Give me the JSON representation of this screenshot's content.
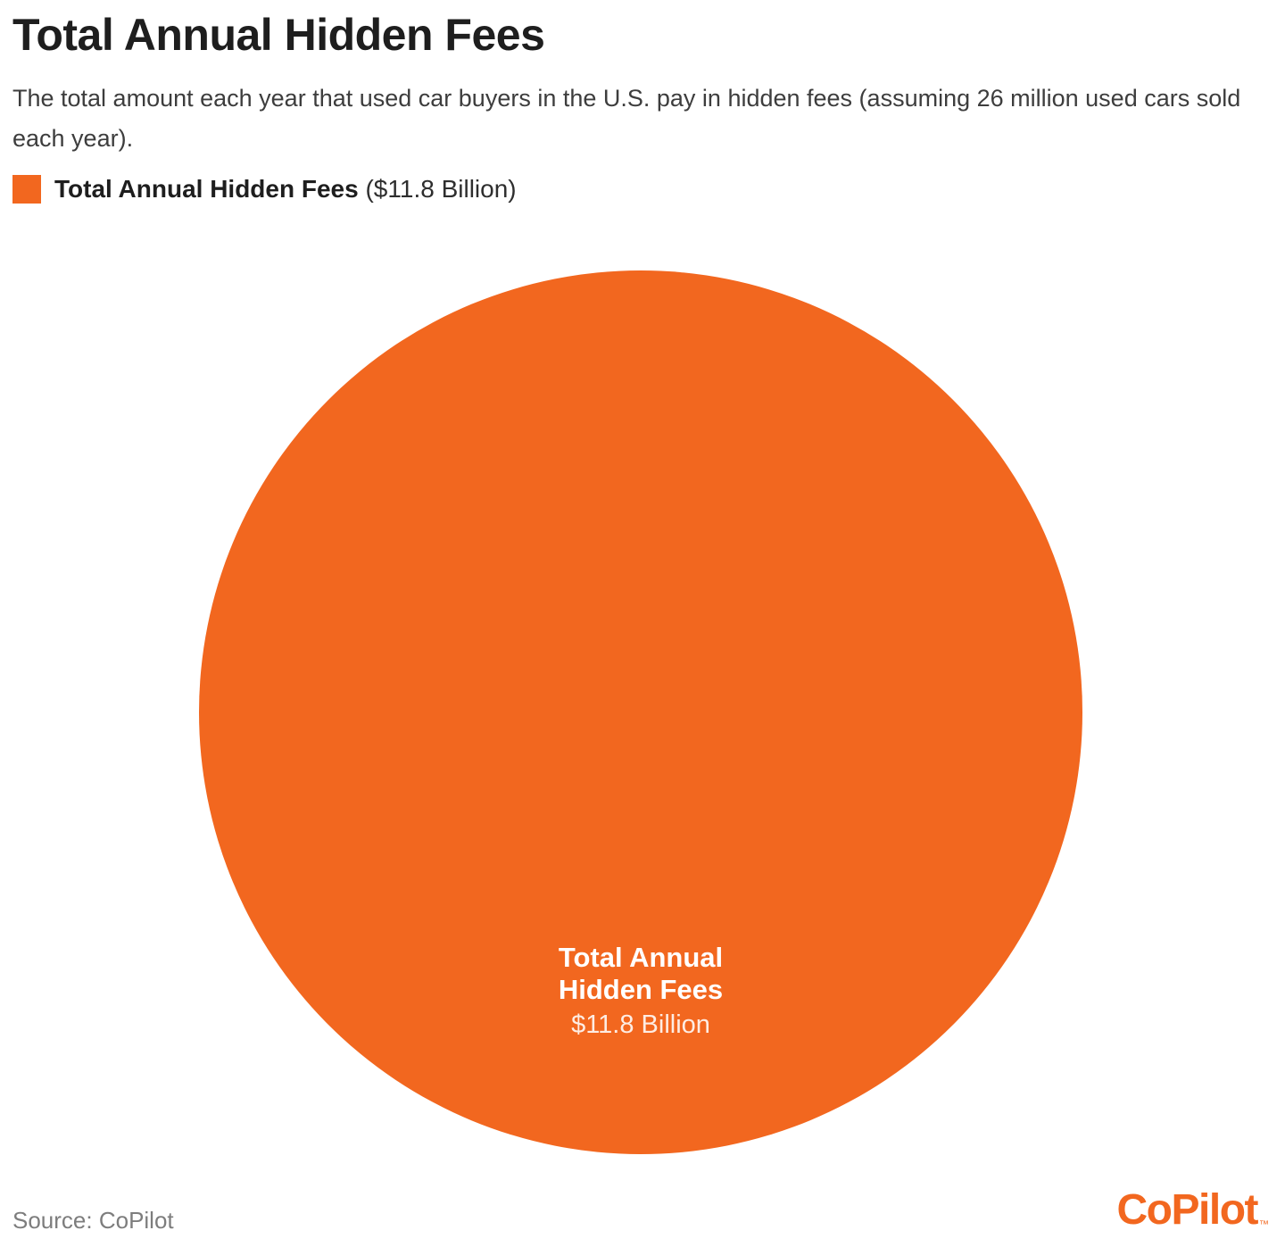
{
  "header": {
    "title": "Total Annual Hidden Fees",
    "subtitle": "The total amount each year that used car buyers in the U.S. pay in hidden fees (assuming 26 million used cars sold each year)."
  },
  "legend": {
    "label": "Total Annual Hidden Fees",
    "value_text": "($11.8 Billion)"
  },
  "circle_label": {
    "line1": "Total Annual",
    "line2": "Hidden Fees",
    "value": "$11.8 Billion"
  },
  "footer": {
    "source": "Source: CoPilot",
    "brand": "CoPilot",
    "trademark": "™"
  },
  "colors": {
    "accent_orange": "#F2671F",
    "title_text": "#1e1e1e",
    "subtitle_text": "#3d3d3d",
    "source_text": "#7d7d7d",
    "circle_label_text": "#ffffff"
  },
  "chart_data": {
    "type": "pie",
    "categories": [
      "Total Annual Hidden Fees"
    ],
    "values": [
      11.8
    ],
    "unit": "billion USD",
    "title": "Total Annual Hidden Fees",
    "subtitle": "The total amount each year that used car buyers in the U.S. pay in hidden fees (assuming 26 million used cars sold each year).",
    "legend_position": "top-left",
    "legend_entries": [
      "Total Annual Hidden Fees ($11.8 Billion)"
    ],
    "slice_colors": [
      "#F2671F"
    ],
    "data_labels": [
      "Total Annual Hidden Fees $11.8 Billion"
    ],
    "notes": "Single full-circle (one-slice pie/bubble) representing $11.8 Billion total annual hidden fees"
  }
}
